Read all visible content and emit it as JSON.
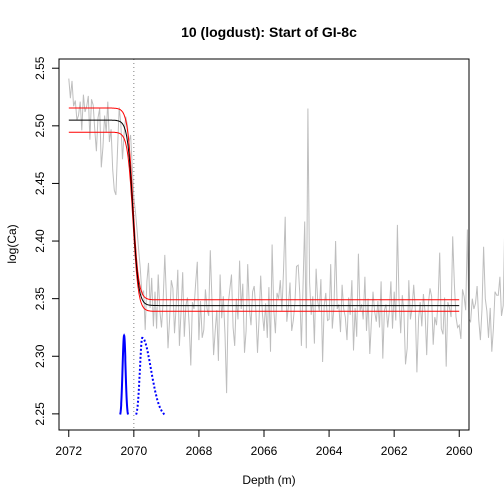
{
  "chart_data": {
    "type": "line",
    "title": "10 (logdust): Start of GI-8c",
    "xlabel": "Depth (m)",
    "ylabel": "log(Ca)",
    "xlim": [
      2072.3,
      2059.7
    ],
    "ylim": [
      2.236,
      2.558
    ],
    "x_reversed": true,
    "grid": false,
    "legend": "none",
    "x_ticks": [
      2072,
      2070,
      2068,
      2066,
      2064,
      2062,
      2060
    ],
    "y_ticks": [
      2.25,
      2.3,
      2.35,
      2.4,
      2.45,
      2.5,
      2.55
    ],
    "x_tick_labels": [
      "2072",
      "2070",
      "2068",
      "2066",
      "2064",
      "2062",
      "2060"
    ],
    "y_tick_labels": [
      "2.25",
      "2.30",
      "2.35",
      "2.40",
      "2.45",
      "2.50",
      "2.55"
    ],
    "transition_depth": 2070.0,
    "fit": {
      "start_depth": 2070.4,
      "end_depth": 2069.65,
      "upper_level": 2.505,
      "lower_level": 2.344,
      "band_halfwidth_upper": 0.0105,
      "band_halfwidth_lower": 0.005
    },
    "series": [
      {
        "role": "data",
        "color": "#bebebe",
        "x_start": 2072.0,
        "x_step": -0.05,
        "values": [
          2.541,
          2.524,
          2.539,
          2.517,
          2.522,
          2.505,
          2.509,
          2.521,
          2.496,
          2.527,
          2.512,
          2.517,
          2.526,
          2.488,
          2.523,
          2.518,
          2.496,
          2.478,
          2.507,
          2.515,
          2.464,
          2.481,
          2.509,
          2.494,
          2.521,
          2.486,
          2.497,
          2.462,
          2.444,
          2.44,
          2.481,
          2.516,
          2.502,
          2.471,
          2.493,
          2.508,
          2.501,
          2.486,
          2.492,
          2.465,
          2.438,
          2.425,
          2.409,
          2.392,
          2.376,
          2.353,
          2.357,
          2.323,
          2.365,
          2.381,
          2.342,
          2.368,
          2.326,
          2.356,
          2.324,
          2.371,
          2.339,
          2.325,
          2.347,
          2.388,
          2.351,
          2.307,
          2.332,
          2.366,
          2.359,
          2.32,
          2.342,
          2.375,
          2.309,
          2.338,
          2.373,
          2.317,
          2.344,
          2.351,
          2.327,
          2.292,
          2.347,
          2.341,
          2.364,
          2.382,
          2.314,
          2.348,
          2.316,
          2.323,
          2.358,
          2.341,
          2.335,
          2.392,
          2.35,
          2.301,
          2.322,
          2.34,
          2.296,
          2.371,
          2.333,
          2.352,
          2.319,
          2.268,
          2.345,
          2.358,
          2.371,
          2.325,
          2.309,
          2.35,
          2.332,
          2.383,
          2.341,
          2.363,
          2.303,
          2.322,
          2.38,
          2.341,
          2.327,
          2.356,
          2.361,
          2.339,
          2.303,
          2.333,
          2.37,
          2.337,
          2.322,
          2.346,
          2.316,
          2.36,
          2.304,
          2.397,
          2.34,
          2.32,
          2.355,
          2.35,
          2.366,
          2.339,
          2.374,
          2.421,
          2.33,
          2.343,
          2.364,
          2.322,
          2.331,
          2.346,
          2.378,
          2.379,
          2.354,
          2.309,
          2.36,
          2.417,
          2.307,
          2.515,
          2.364,
          2.336,
          2.352,
          2.311,
          2.376,
          2.348,
          2.339,
          2.367,
          2.295,
          2.344,
          2.355,
          2.331,
          2.332,
          2.38,
          2.324,
          2.343,
          2.4,
          2.341,
          2.345,
          2.321,
          2.362,
          2.341,
          2.334,
          2.314,
          2.351,
          2.336,
          2.366,
          2.305,
          2.342,
          2.317,
          2.389,
          2.339,
          2.345,
          2.332,
          2.369,
          2.322,
          2.35,
          2.302,
          2.33,
          2.356,
          2.339,
          2.33,
          2.348,
          2.325,
          2.365,
          2.298,
          2.34,
          2.345,
          2.325,
          2.339,
          2.365,
          2.324,
          2.356,
          2.331,
          2.414,
          2.35,
          2.32,
          2.353,
          2.339,
          2.293,
          2.307,
          2.366,
          2.332,
          2.342,
          2.362,
          2.341,
          2.286,
          2.333,
          2.347,
          2.326,
          2.354,
          2.338,
          2.301,
          2.345,
          2.359,
          2.352,
          2.31,
          2.334,
          2.327,
          2.348,
          2.39,
          2.324,
          2.319,
          2.351,
          2.291,
          2.347,
          2.342,
          2.334,
          2.404,
          2.362,
          2.334,
          2.325,
          2.327,
          2.315,
          2.358,
          2.352,
          2.34,
          2.41,
          2.332,
          2.33,
          2.35,
          2.341,
          2.346,
          2.361,
          2.331,
          2.314,
          2.341,
          2.395,
          2.35,
          2.339,
          2.316,
          2.342,
          2.304,
          2.324,
          2.356,
          2.353,
          2.353,
          2.369,
          2.335,
          2.344,
          2.417,
          2.323,
          2.362,
          2.381,
          2.294,
          2.418
        ]
      },
      {
        "role": "fit",
        "color": "#000000"
      },
      {
        "role": "fit-band-upper",
        "color": "#ff0000"
      },
      {
        "role": "fit-band-lower",
        "color": "#ff0000"
      },
      {
        "role": "start-distribution",
        "color": "#0000ff",
        "style": "solid",
        "x": [
          2070.42,
          2070.3,
          2070.18
        ],
        "baseline": 2.247,
        "peak": 2.318
      },
      {
        "role": "end-distribution",
        "color": "#0000ff",
        "style": "dotted",
        "x": [
          2069.93,
          2069.74,
          2069.05
        ],
        "baseline": 2.247,
        "peak": 2.316
      }
    ]
  }
}
